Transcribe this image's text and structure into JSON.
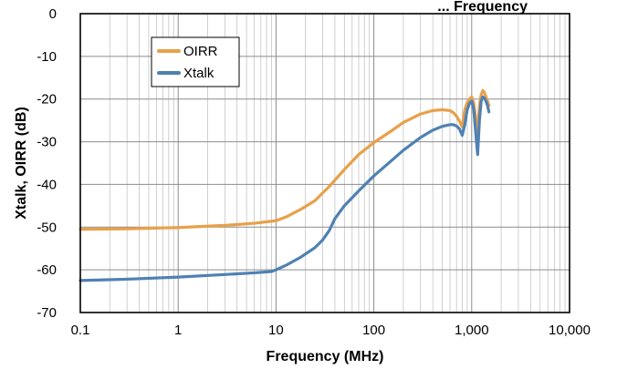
{
  "chart_data": {
    "type": "line",
    "title": "... Frequency",
    "xlabel": "Frequency (MHz)",
    "ylabel": "Xtalk, OIRR (dB)",
    "x_scale": "log",
    "xlim": [
      0.1,
      10000
    ],
    "ylim": [
      -70,
      0
    ],
    "x_ticks": [
      0.1,
      1,
      10,
      100,
      1000,
      10000
    ],
    "x_tick_labels": [
      "0.1",
      "1",
      "10",
      "100",
      "1,000",
      "10,000"
    ],
    "y_ticks": [
      0,
      -10,
      -20,
      -30,
      -40,
      -50,
      -60,
      -70
    ],
    "y_tick_labels": [
      "0",
      "-10",
      "-20",
      "-30",
      "-40",
      "-50",
      "-60",
      "-70"
    ],
    "grid": true,
    "legend_position": "top-left",
    "series": [
      {
        "name": "OIRR",
        "color": "#E8A04A",
        "x": [
          0.1,
          0.3,
          1,
          3,
          6,
          10,
          13,
          18,
          25,
          30,
          35,
          40,
          50,
          70,
          100,
          150,
          200,
          300,
          400,
          500,
          600,
          650,
          700,
          750,
          800,
          850,
          900,
          950,
          1000,
          1050,
          1100,
          1150,
          1200,
          1250,
          1300,
          1350,
          1400,
          1450,
          1500
        ],
        "y": [
          -50.5,
          -50.4,
          -50.1,
          -49.6,
          -49.1,
          -48.5,
          -47.5,
          -45.8,
          -43.8,
          -42.0,
          -40.5,
          -39.0,
          -36.5,
          -33.0,
          -30.2,
          -27.5,
          -25.5,
          -23.5,
          -22.7,
          -22.5,
          -22.7,
          -23.2,
          -24.0,
          -25.2,
          -26.5,
          -22.5,
          -20.8,
          -20.0,
          -19.5,
          -21.0,
          -24.5,
          -27.5,
          -21.5,
          -19.0,
          -18.0,
          -18.5,
          -19.5,
          -20.5,
          -21.5
        ]
      },
      {
        "name": "Xtalk",
        "color": "#4F81B3",
        "x": [
          0.1,
          0.3,
          1,
          3,
          6,
          9,
          10,
          13,
          18,
          25,
          30,
          35,
          40,
          50,
          70,
          100,
          150,
          200,
          300,
          400,
          500,
          600,
          650,
          700,
          750,
          800,
          850,
          900,
          950,
          1000,
          1050,
          1100,
          1150,
          1200,
          1250,
          1300,
          1350,
          1400,
          1450,
          1500
        ],
        "y": [
          -62.5,
          -62.2,
          -61.7,
          -61.1,
          -60.7,
          -60.4,
          -60.0,
          -58.8,
          -57.0,
          -54.8,
          -53.0,
          -50.8,
          -48.0,
          -45.0,
          -41.5,
          -38.0,
          -34.5,
          -32.0,
          -29.0,
          -27.3,
          -26.4,
          -26.0,
          -26.0,
          -26.3,
          -27.0,
          -28.5,
          -26.0,
          -22.5,
          -21.0,
          -20.5,
          -22.5,
          -28.0,
          -33.0,
          -25.0,
          -20.5,
          -19.5,
          -19.8,
          -20.5,
          -21.5,
          -23.0
        ]
      }
    ]
  }
}
